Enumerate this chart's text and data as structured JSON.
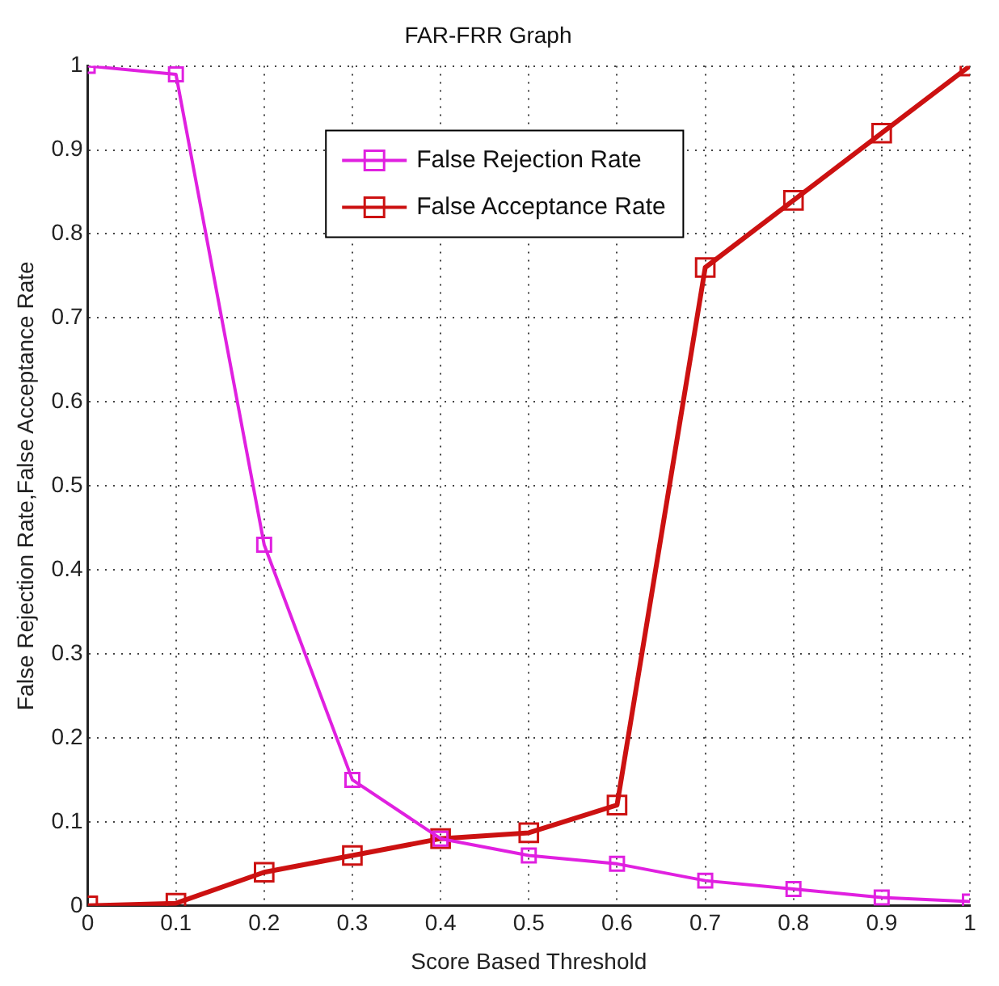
{
  "chart_data": {
    "type": "line",
    "title": "FAR-FRR Graph",
    "xlabel": "Score Based Threshold",
    "ylabel": "False Rejection Rate,False Acceptance Rate",
    "x": [
      0,
      0.1,
      0.2,
      0.3,
      0.4,
      0.5,
      0.6,
      0.7,
      0.8,
      0.9,
      1
    ],
    "series": [
      {
        "name": "False Rejection Rate",
        "color": "#e020e0",
        "values": [
          1,
          0.99,
          0.43,
          0.15,
          0.08,
          0.06,
          0.05,
          0.03,
          0.02,
          0.01,
          0.005
        ]
      },
      {
        "name": "False Acceptance Rate",
        "color": "#cc1111",
        "values": [
          0,
          0.003,
          0.04,
          0.06,
          0.08,
          0.087,
          0.12,
          0.76,
          0.84,
          0.92,
          1
        ]
      }
    ],
    "xlim": [
      0,
      1
    ],
    "xticks": [
      0,
      0.1,
      0.2,
      0.3,
      0.4,
      0.5,
      0.6,
      0.7,
      0.8,
      0.9,
      1
    ],
    "ylim": [
      0,
      1
    ],
    "yticks": [
      0,
      0.1,
      0.2,
      0.3,
      0.4,
      0.5,
      0.6,
      0.7,
      0.8,
      0.9,
      1
    ],
    "grid": true,
    "legend": "top",
    "marker": "square",
    "line_style": "solid"
  }
}
